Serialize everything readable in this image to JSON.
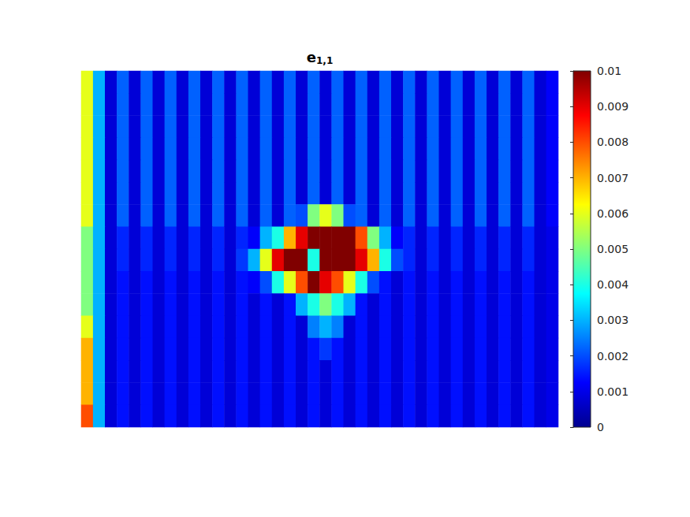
{
  "chart_data": {
    "type": "heatmap",
    "title": {
      "text": "e",
      "subscript": "1,1"
    },
    "tick_labels": false,
    "cells": [
      [
        0.006,
        0.003,
        0.0008,
        0.0022,
        0.0008,
        0.0022,
        0.0008,
        0.0022,
        0.0008,
        0.0022,
        0.0008,
        0.0022,
        0.0008,
        0.0022,
        0.0008,
        0.0022,
        0.0008,
        0.0022,
        0.0008,
        0.0022,
        0.0008,
        0.0022,
        0.0008,
        0.0022,
        0.0008,
        0.0022,
        0.0008,
        0.0022,
        0.0008,
        0.0022,
        0.0008,
        0.0022,
        0.0008,
        0.0022,
        0.0008,
        0.0022,
        0.0008,
        0.0022,
        0.0008,
        0.0012
      ],
      [
        0.006,
        0.003,
        0.0008,
        0.0022,
        0.0008,
        0.0022,
        0.0008,
        0.0022,
        0.0008,
        0.0022,
        0.0008,
        0.0022,
        0.0008,
        0.0022,
        0.0008,
        0.0022,
        0.0008,
        0.0022,
        0.0008,
        0.0022,
        0.0008,
        0.0022,
        0.0008,
        0.0022,
        0.0008,
        0.0022,
        0.0008,
        0.0022,
        0.0008,
        0.0022,
        0.0008,
        0.0022,
        0.0008,
        0.0022,
        0.0008,
        0.0022,
        0.0008,
        0.0022,
        0.0008,
        0.0012
      ],
      [
        0.006,
        0.003,
        0.0008,
        0.0022,
        0.0008,
        0.0022,
        0.0008,
        0.0022,
        0.0008,
        0.0022,
        0.0008,
        0.0022,
        0.0008,
        0.0022,
        0.0008,
        0.0022,
        0.0008,
        0.0022,
        0.0008,
        0.0022,
        0.0008,
        0.0022,
        0.0008,
        0.0022,
        0.0008,
        0.0022,
        0.0008,
        0.0022,
        0.0008,
        0.0022,
        0.0008,
        0.0022,
        0.0008,
        0.0022,
        0.0008,
        0.0022,
        0.0008,
        0.0022,
        0.0008,
        0.0012
      ],
      [
        0.006,
        0.003,
        0.0008,
        0.0022,
        0.0008,
        0.0022,
        0.0008,
        0.0022,
        0.0008,
        0.0022,
        0.0008,
        0.0022,
        0.0008,
        0.0022,
        0.0008,
        0.0022,
        0.0008,
        0.0022,
        0.0008,
        0.0022,
        0.0008,
        0.0022,
        0.0008,
        0.0022,
        0.0008,
        0.0022,
        0.0008,
        0.0022,
        0.0008,
        0.0022,
        0.0008,
        0.0022,
        0.0008,
        0.0022,
        0.0008,
        0.0022,
        0.0008,
        0.0022,
        0.0008,
        0.0012
      ],
      [
        0.006,
        0.003,
        0.0008,
        0.0022,
        0.0008,
        0.0022,
        0.0008,
        0.0022,
        0.0008,
        0.0022,
        0.0008,
        0.0022,
        0.0008,
        0.0022,
        0.0008,
        0.0022,
        0.0008,
        0.0022,
        0.0008,
        0.0022,
        0.0008,
        0.0022,
        0.0008,
        0.0022,
        0.0008,
        0.0022,
        0.0008,
        0.0022,
        0.0008,
        0.0022,
        0.0008,
        0.0022,
        0.0008,
        0.0022,
        0.0008,
        0.0022,
        0.0008,
        0.0022,
        0.0008,
        0.0012
      ],
      [
        0.006,
        0.003,
        0.0008,
        0.0022,
        0.0008,
        0.0022,
        0.0008,
        0.0022,
        0.0008,
        0.0022,
        0.0008,
        0.0022,
        0.0008,
        0.0022,
        0.0008,
        0.0022,
        0.0008,
        0.0022,
        0.0008,
        0.0022,
        0.0008,
        0.0022,
        0.0008,
        0.0022,
        0.0008,
        0.0022,
        0.0008,
        0.0022,
        0.0008,
        0.0022,
        0.0008,
        0.0022,
        0.0008,
        0.0022,
        0.0008,
        0.0022,
        0.0008,
        0.0022,
        0.0008,
        0.0012
      ],
      [
        0.006,
        0.003,
        0.0008,
        0.0022,
        0.0008,
        0.0022,
        0.0008,
        0.0022,
        0.0008,
        0.0022,
        0.0008,
        0.0022,
        0.0008,
        0.0022,
        0.0008,
        0.0022,
        0.0008,
        0.0022,
        0.002,
        0.005,
        0.006,
        0.005,
        0.002,
        0.0022,
        0.0008,
        0.0022,
        0.0008,
        0.0022,
        0.0008,
        0.0022,
        0.0008,
        0.0022,
        0.0008,
        0.0022,
        0.0008,
        0.0022,
        0.0008,
        0.0022,
        0.0008,
        0.0012
      ],
      [
        0.005,
        0.003,
        0.0008,
        0.0016,
        0.0008,
        0.0016,
        0.0008,
        0.0016,
        0.0008,
        0.0016,
        0.0008,
        0.0016,
        0.0008,
        0.0016,
        0.0012,
        0.003,
        0.004,
        0.007,
        0.009,
        0.01,
        0.01,
        0.01,
        0.01,
        0.008,
        0.005,
        0.003,
        0.0012,
        0.0016,
        0.0008,
        0.0016,
        0.0008,
        0.0016,
        0.0008,
        0.0016,
        0.0008,
        0.0016,
        0.0008,
        0.0016,
        0.0008,
        0.001
      ],
      [
        0.005,
        0.003,
        0.0008,
        0.0016,
        0.0008,
        0.0016,
        0.0008,
        0.0016,
        0.0008,
        0.0016,
        0.0008,
        0.0016,
        0.0008,
        0.0018,
        0.003,
        0.006,
        0.009,
        0.01,
        0.01,
        0.004,
        0.01,
        0.01,
        0.01,
        0.009,
        0.007,
        0.004,
        0.002,
        0.0016,
        0.0008,
        0.0016,
        0.0008,
        0.0016,
        0.0008,
        0.0016,
        0.0008,
        0.0016,
        0.0008,
        0.0016,
        0.0008,
        0.001
      ],
      [
        0.005,
        0.003,
        0.0008,
        0.0014,
        0.0008,
        0.0014,
        0.0008,
        0.0014,
        0.0008,
        0.0014,
        0.0008,
        0.0014,
        0.0008,
        0.0014,
        0.0012,
        0.002,
        0.004,
        0.006,
        0.008,
        0.01,
        0.009,
        0.008,
        0.006,
        0.004,
        0.002,
        0.0014,
        0.0008,
        0.0014,
        0.0008,
        0.0014,
        0.0008,
        0.0014,
        0.0008,
        0.0014,
        0.0008,
        0.0014,
        0.0008,
        0.0014,
        0.0008,
        0.001
      ],
      [
        0.005,
        0.003,
        0.0008,
        0.0014,
        0.0008,
        0.0014,
        0.0008,
        0.0014,
        0.0008,
        0.0014,
        0.0008,
        0.0014,
        0.0008,
        0.0014,
        0.0008,
        0.0014,
        0.0008,
        0.0014,
        0.003,
        0.004,
        0.005,
        0.004,
        0.003,
        0.0014,
        0.0008,
        0.0014,
        0.0008,
        0.0014,
        0.0008,
        0.0014,
        0.0008,
        0.0014,
        0.0008,
        0.0014,
        0.0008,
        0.0014,
        0.0008,
        0.0014,
        0.0008,
        0.001
      ],
      [
        0.006,
        0.003,
        0.0008,
        0.0014,
        0.0008,
        0.0014,
        0.0008,
        0.0014,
        0.0008,
        0.0014,
        0.0008,
        0.0014,
        0.0008,
        0.0014,
        0.0008,
        0.0014,
        0.0008,
        0.0014,
        0.0008,
        0.0025,
        0.003,
        0.0025,
        0.0008,
        0.0014,
        0.0008,
        0.0014,
        0.0008,
        0.0014,
        0.0008,
        0.0014,
        0.0008,
        0.0014,
        0.0008,
        0.0014,
        0.0008,
        0.0014,
        0.0008,
        0.0014,
        0.0008,
        0.001
      ],
      [
        0.007,
        0.003,
        0.0008,
        0.0014,
        0.0008,
        0.0014,
        0.0008,
        0.0014,
        0.0008,
        0.0014,
        0.0008,
        0.0014,
        0.0008,
        0.0014,
        0.0008,
        0.0014,
        0.0008,
        0.0014,
        0.0008,
        0.0014,
        0.0018,
        0.0014,
        0.0008,
        0.0014,
        0.0008,
        0.0014,
        0.0008,
        0.0014,
        0.0008,
        0.0014,
        0.0008,
        0.0014,
        0.0008,
        0.0014,
        0.0008,
        0.0014,
        0.0008,
        0.0014,
        0.0008,
        0.001
      ],
      [
        0.007,
        0.003,
        0.0008,
        0.0014,
        0.0008,
        0.0014,
        0.0008,
        0.0014,
        0.0008,
        0.0014,
        0.0008,
        0.0014,
        0.0008,
        0.0014,
        0.0008,
        0.0014,
        0.0008,
        0.0014,
        0.0008,
        0.0014,
        0.0008,
        0.0014,
        0.0008,
        0.0014,
        0.0008,
        0.0014,
        0.0008,
        0.0014,
        0.0008,
        0.0014,
        0.0008,
        0.0014,
        0.0008,
        0.0014,
        0.0008,
        0.0014,
        0.0008,
        0.0014,
        0.0008,
        0.001
      ],
      [
        0.007,
        0.003,
        0.0008,
        0.0014,
        0.0008,
        0.0014,
        0.0008,
        0.0014,
        0.0008,
        0.0014,
        0.0008,
        0.0014,
        0.0008,
        0.0014,
        0.0008,
        0.0014,
        0.0008,
        0.0014,
        0.0008,
        0.0014,
        0.0008,
        0.0014,
        0.0008,
        0.0014,
        0.0008,
        0.0014,
        0.0008,
        0.0014,
        0.0008,
        0.0014,
        0.0008,
        0.0014,
        0.0008,
        0.0014,
        0.0008,
        0.0014,
        0.0008,
        0.0014,
        0.0008,
        0.001
      ],
      [
        0.008,
        0.003,
        0.0008,
        0.0014,
        0.0008,
        0.0014,
        0.0008,
        0.0014,
        0.0008,
        0.0014,
        0.0008,
        0.0014,
        0.0008,
        0.0014,
        0.0008,
        0.0014,
        0.0008,
        0.0014,
        0.0008,
        0.0014,
        0.0008,
        0.0014,
        0.0008,
        0.0014,
        0.0008,
        0.0014,
        0.0008,
        0.0014,
        0.0008,
        0.0014,
        0.0008,
        0.0014,
        0.0008,
        0.0014,
        0.0008,
        0.0014,
        0.0008,
        0.0014,
        0.0008,
        0.001
      ]
    ],
    "colorbar": {
      "range": [
        0,
        0.01
      ],
      "ticks": [
        0,
        0.001,
        0.002,
        0.003,
        0.004,
        0.005,
        0.006,
        0.007,
        0.008,
        0.009,
        0.01
      ]
    }
  }
}
